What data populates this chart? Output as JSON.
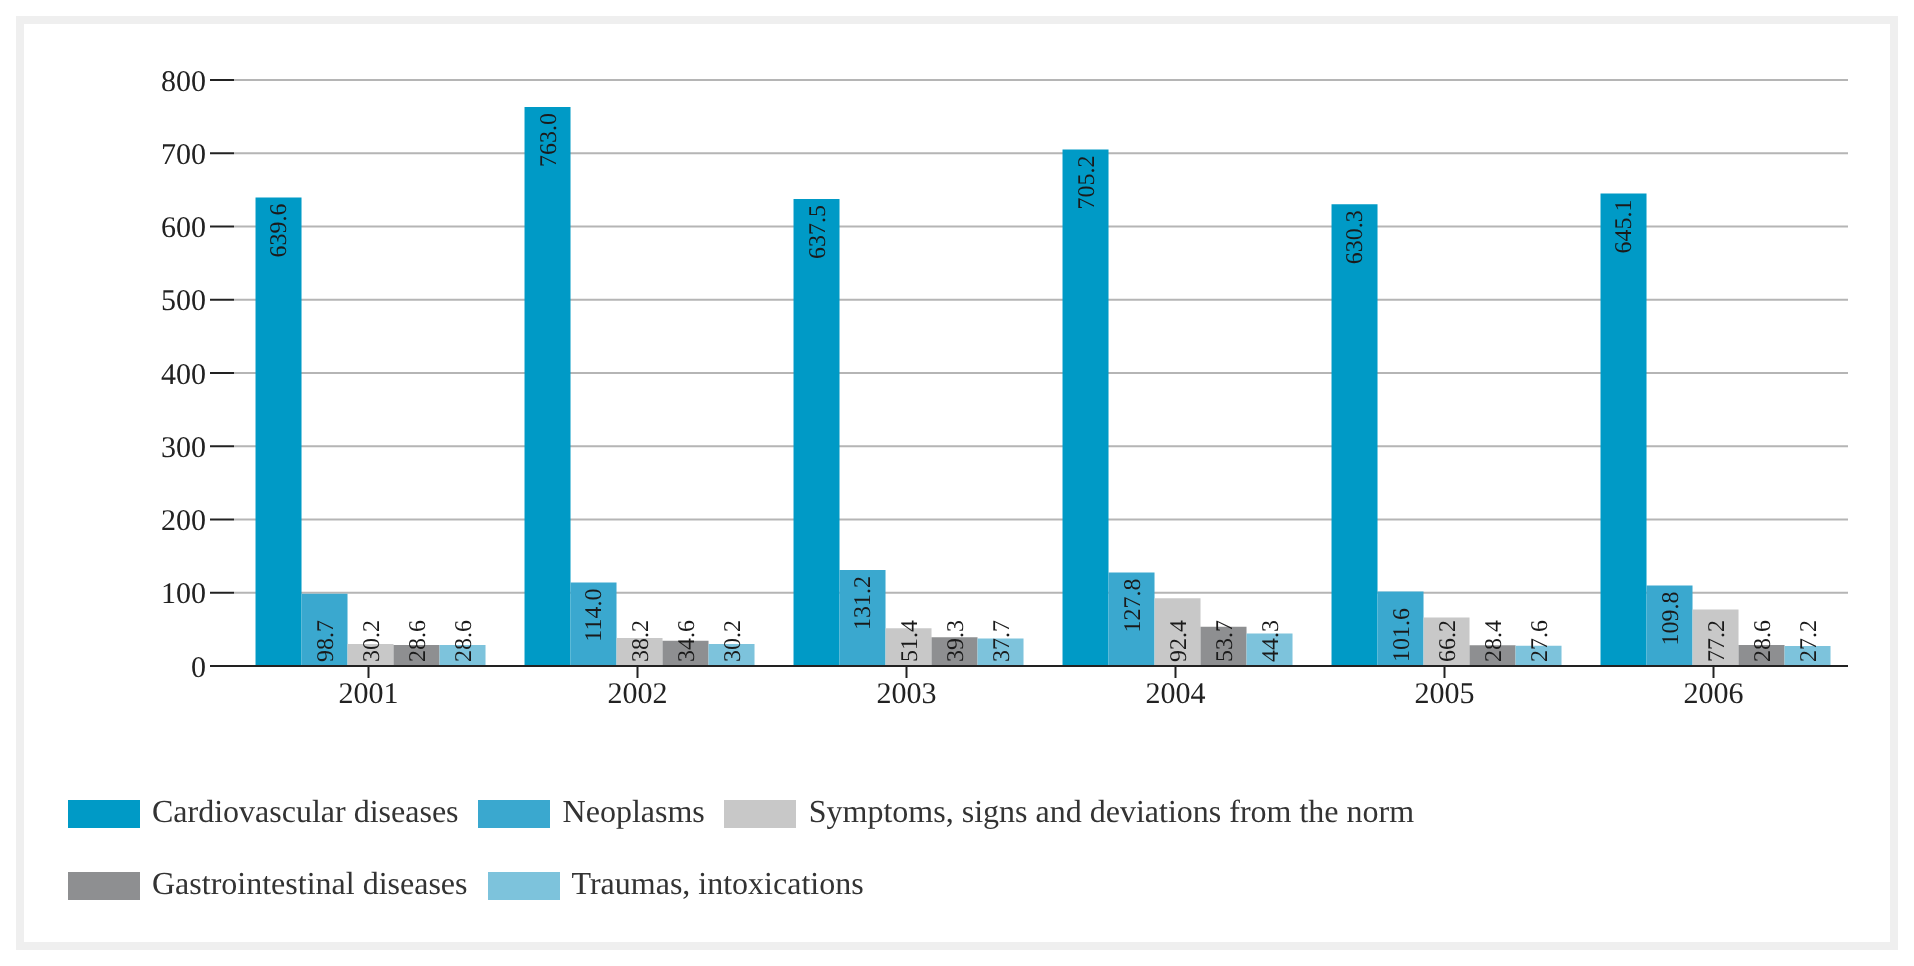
{
  "chart_data": {
    "type": "bar",
    "categories": [
      "2001",
      "2002",
      "2003",
      "2004",
      "2005",
      "2006"
    ],
    "series": [
      {
        "name": "Cardiovascular diseases",
        "color": "#009ac6",
        "values": [
          639.6,
          763.0,
          637.5,
          705.2,
          630.3,
          645.1
        ],
        "value_labels": [
          "639.6",
          "763.0",
          "637.5",
          "705.2",
          "630.3",
          "645.1"
        ]
      },
      {
        "name": "Neoplasms",
        "color": "#3aa8cf",
        "values": [
          98.7,
          114.0,
          131.2,
          127.8,
          101.6,
          109.8
        ],
        "value_labels": [
          "98.7",
          "114.0",
          "131.2",
          "127.8",
          "101.6",
          "109.8"
        ]
      },
      {
        "name": "Symptoms, signs and deviations from the norm",
        "color": "#c8c8c8",
        "values": [
          30.2,
          38.2,
          51.4,
          92.4,
          66.2,
          77.2
        ],
        "value_labels": [
          "30.2",
          "38.2",
          "51.4",
          "92.4",
          "66.2",
          "77.2"
        ]
      },
      {
        "name": "Gastrointestinal diseases",
        "color": "#8e8f91",
        "values": [
          28.6,
          34.6,
          39.3,
          53.7,
          28.4,
          28.6
        ],
        "value_labels": [
          "28.6",
          "34.6",
          "39.3",
          "53.7",
          "28.4",
          "28.6"
        ]
      },
      {
        "name": "Traumas, intoxications",
        "color": "#7dc3dc",
        "values": [
          28.6,
          30.2,
          37.7,
          44.3,
          27.6,
          27.2
        ],
        "value_labels": [
          "28.6",
          "30.2",
          "37.7",
          "44.3",
          "27.6",
          "27.2"
        ]
      }
    ],
    "ylim": [
      0,
      800
    ],
    "yticks": [
      0,
      100,
      200,
      300,
      400,
      500,
      600,
      700,
      800
    ],
    "grid": "y",
    "legend": "bottom"
  }
}
